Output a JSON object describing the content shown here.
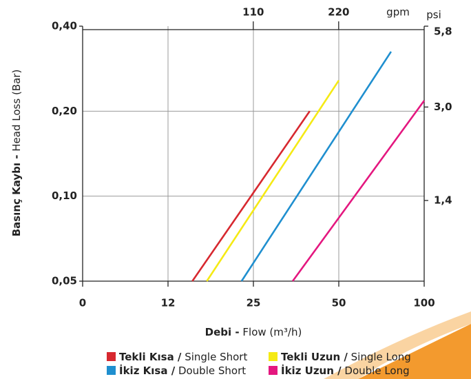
{
  "chart_data": {
    "type": "line",
    "y_label_bold": "Basınç Kaybı -",
    "y_label": "Head Loss (Bar)",
    "x_label_bold": "Debi -",
    "x_label": "Flow (m³/h)",
    "x2_unit": "gpm",
    "y2_unit": "psi",
    "log_y": true,
    "grid": true,
    "xticks": [
      0,
      12,
      25,
      50,
      100
    ],
    "xlim": [
      0,
      100
    ],
    "ylim": [
      0.05,
      0.4
    ],
    "yticks": [
      {
        "value": 0.05,
        "label": "0,05"
      },
      {
        "value": 0.1,
        "label": "0,10"
      },
      {
        "value": 0.2,
        "label": "0,20"
      },
      {
        "value": 0.4,
        "label": "0,40"
      }
    ],
    "x2ticks": [
      110,
      220
    ],
    "y2ticks": [
      {
        "value": 1.4,
        "label": "1,4"
      },
      {
        "value": 3.0,
        "label": "3,0"
      },
      {
        "value": 5.8,
        "label": "5,8"
      }
    ],
    "series": [
      {
        "name": "Tekli Kısa / Single Short",
        "color": "#d7282f",
        "x": [
          15.7,
          41.5
        ],
        "values": [
          0.05,
          0.2
        ]
      },
      {
        "name": "Tekli Uzun / Single Long",
        "color": "#f5ea14",
        "x": [
          17.9,
          50
        ],
        "values": [
          0.05,
          0.257
        ]
      },
      {
        "name": "İkiz Kısa / Double Short",
        "color": "#1f8fcf",
        "x": [
          23.2,
          80.6
        ],
        "values": [
          0.05,
          0.325
        ]
      },
      {
        "name": "İkiz Uzun / Double Long",
        "color": "#e4177f",
        "x": [
          36.5,
          100
        ],
        "values": [
          0.05,
          0.218
        ]
      }
    ]
  }
}
